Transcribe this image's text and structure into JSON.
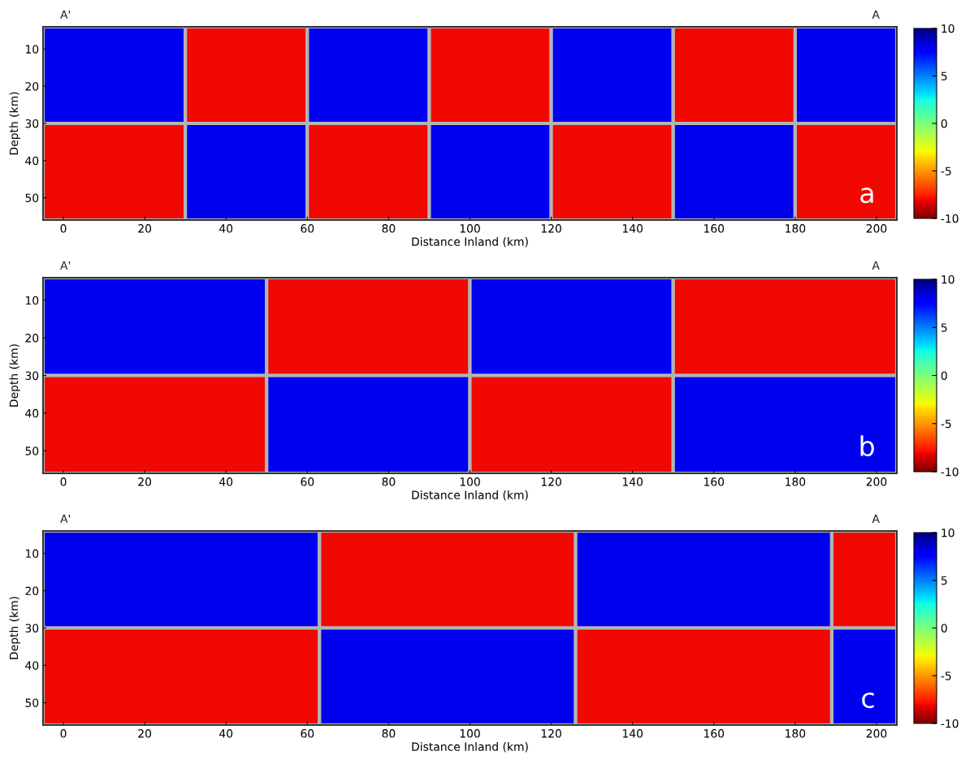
{
  "chart_data": [
    {
      "type": "heatmap",
      "xlabel": "Distance Inland (km)",
      "ylabel": "Depth (km)",
      "annotations": [
        "A'",
        "A",
        "a"
      ],
      "x": [
        12.5,
        45,
        75,
        105,
        135,
        165,
        192.5
      ],
      "y": [
        17,
        43
      ],
      "cells": [
        [
          8,
          -8,
          8,
          -8,
          8,
          -8,
          8
        ],
        [
          -8,
          8,
          -8,
          8,
          -8,
          8,
          -8
        ]
      ],
      "clim": [
        -10,
        10
      ],
      "cticks": [
        -10,
        -5,
        0,
        5,
        10
      ],
      "xlim": [
        -5,
        205
      ],
      "ylim": [
        56,
        4
      ],
      "xticks": [
        0,
        20,
        40,
        60,
        80,
        100,
        120,
        140,
        160,
        180,
        200
      ],
      "yticks": [
        10,
        20,
        30,
        40,
        50
      ],
      "grid": false
    },
    {
      "type": "heatmap",
      "xlabel": "Distance Inland (km)",
      "ylabel": "Depth (km)",
      "annotations": [
        "A'",
        "A",
        "b"
      ],
      "x": [
        22.5,
        75,
        125,
        177.5
      ],
      "y": [
        17,
        43
      ],
      "cells": [
        [
          8,
          -8,
          8,
          -8
        ],
        [
          -8,
          8,
          -8,
          8
        ]
      ],
      "clim": [
        -10,
        10
      ],
      "cticks": [
        -10,
        -5,
        0,
        5,
        10
      ],
      "xlim": [
        -5,
        205
      ],
      "ylim": [
        56,
        4
      ],
      "xticks": [
        0,
        20,
        40,
        60,
        80,
        100,
        120,
        140,
        160,
        180,
        200
      ],
      "yticks": [
        10,
        20,
        30,
        40,
        50
      ],
      "grid": false
    },
    {
      "type": "heatmap",
      "xlabel": "Distance Inland (km)",
      "ylabel": "Depth (km)",
      "annotations": [
        "A'",
        "A",
        "c"
      ],
      "x": [
        29,
        94.5,
        157.5,
        197
      ],
      "y": [
        17,
        43
      ],
      "cells": [
        [
          8,
          -8,
          8,
          -8
        ],
        [
          -8,
          8,
          -8,
          8
        ]
      ],
      "clim": [
        -10,
        10
      ],
      "cticks": [
        -10,
        -5,
        0,
        5,
        10
      ],
      "xlim": [
        -5,
        205
      ],
      "ylim": [
        56,
        4
      ],
      "xticks": [
        0,
        20,
        40,
        60,
        80,
        100,
        120,
        140,
        160,
        180,
        200
      ],
      "yticks": [
        10,
        20,
        30,
        40,
        50
      ],
      "grid": false
    }
  ]
}
